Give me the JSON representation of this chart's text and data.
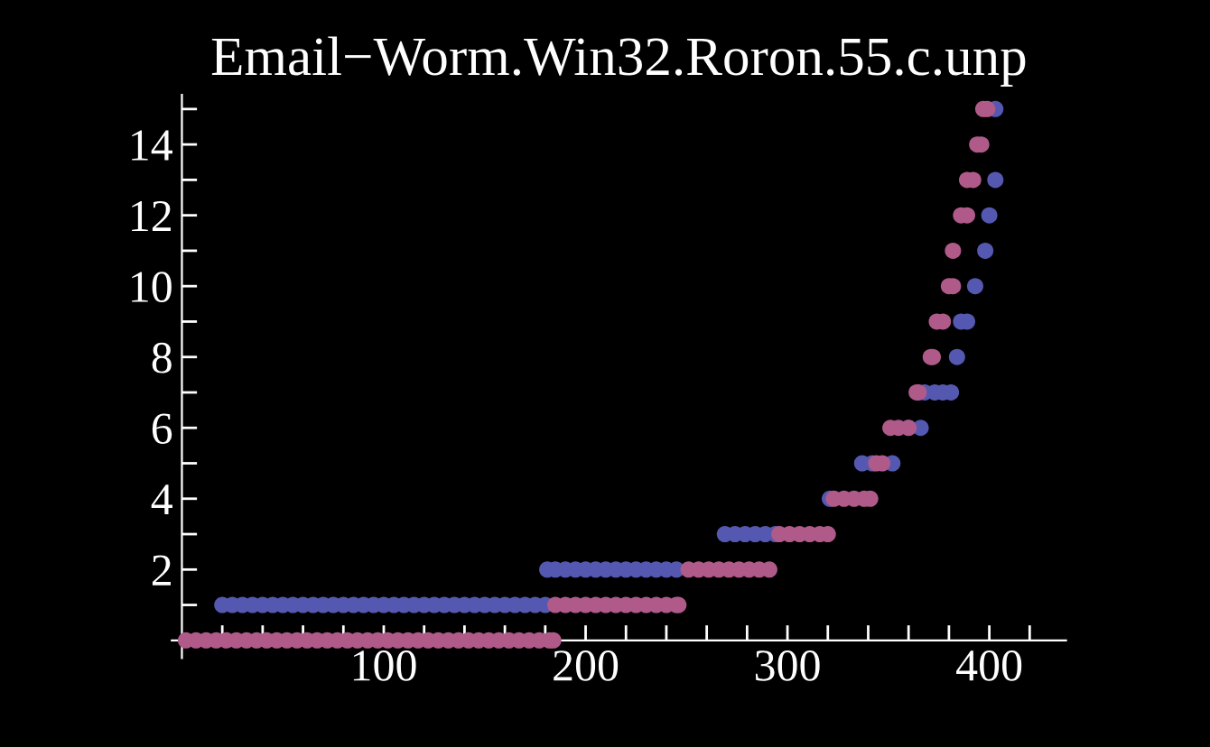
{
  "chart_data": {
    "type": "scatter",
    "title": "Email−Worm.Win32.Roron.55.c.unp",
    "marker": "circle",
    "grid": false,
    "xlim": [
      -5,
      438
    ],
    "ylim": [
      -0.5,
      15.4
    ],
    "xticks": [
      {
        "value": 20,
        "label": null
      },
      {
        "value": 40,
        "label": null
      },
      {
        "value": 60,
        "label": null
      },
      {
        "value": 80,
        "label": null
      },
      100,
      {
        "value": 120,
        "label": null
      },
      {
        "value": 140,
        "label": null
      },
      {
        "value": 160,
        "label": null
      },
      {
        "value": 180,
        "label": null
      },
      200,
      {
        "value": 220,
        "label": null
      },
      {
        "value": 240,
        "label": null
      },
      {
        "value": 260,
        "label": null
      },
      {
        "value": 280,
        "label": null
      },
      300,
      {
        "value": 320,
        "label": null
      },
      {
        "value": 340,
        "label": null
      },
      {
        "value": 360,
        "label": null
      },
      {
        "value": 380,
        "label": null
      },
      400,
      {
        "value": 420,
        "label": null
      }
    ],
    "yticks": [
      {
        "value": 1,
        "label": null
      },
      2,
      {
        "value": 3,
        "label": null
      },
      4,
      {
        "value": 5,
        "label": null
      },
      6,
      {
        "value": 7,
        "label": null
      },
      8,
      {
        "value": 9,
        "label": null
      },
      10,
      {
        "value": 11,
        "label": null
      },
      12,
      {
        "value": 13,
        "label": null
      },
      14,
      {
        "value": 15,
        "label": null
      }
    ],
    "series": [
      {
        "color": "#5558b0",
        "x": [
          20,
          25,
          30,
          35,
          40,
          45,
          50,
          55,
          60,
          65,
          70,
          75,
          80,
          85,
          90,
          95,
          100,
          105,
          110,
          115,
          120,
          125,
          130,
          135,
          140,
          145,
          150,
          155,
          160,
          165,
          170,
          175,
          180,
          181,
          185,
          190,
          195,
          200,
          205,
          210,
          215,
          220,
          225,
          230,
          235,
          240,
          245,
          269,
          274,
          279,
          284,
          289,
          294,
          321,
          337,
          342,
          352,
          360,
          366,
          368,
          373,
          377,
          381,
          384,
          386,
          389,
          393,
          398,
          400,
          403,
          403
        ],
        "values": [
          1,
          1,
          1,
          1,
          1,
          1,
          1,
          1,
          1,
          1,
          1,
          1,
          1,
          1,
          1,
          1,
          1,
          1,
          1,
          1,
          1,
          1,
          1,
          1,
          1,
          1,
          1,
          1,
          1,
          1,
          1,
          1,
          1,
          2,
          2,
          2,
          2,
          2,
          2,
          2,
          2,
          2,
          2,
          2,
          2,
          2,
          2,
          3,
          3,
          3,
          3,
          3,
          3,
          4,
          5,
          5,
          5,
          6,
          6,
          7,
          7,
          7,
          7,
          8,
          9,
          9,
          10,
          11,
          12,
          13,
          15
        ]
      },
      {
        "color": "#b05a8a",
        "x": [
          2,
          7,
          12,
          17,
          22,
          27,
          32,
          37,
          42,
          47,
          52,
          57,
          62,
          67,
          72,
          77,
          82,
          87,
          92,
          97,
          102,
          107,
          112,
          117,
          122,
          127,
          132,
          137,
          142,
          147,
          152,
          157,
          162,
          167,
          172,
          177,
          182,
          184,
          185,
          190,
          195,
          200,
          205,
          210,
          215,
          220,
          225,
          230,
          235,
          240,
          245,
          246,
          251,
          256,
          261,
          266,
          271,
          276,
          281,
          286,
          291,
          296,
          301,
          306,
          311,
          316,
          320,
          323,
          328,
          333,
          338,
          341,
          344,
          347,
          351,
          355,
          360,
          364,
          365,
          371,
          372,
          374,
          377,
          380,
          382,
          382,
          386,
          389,
          389,
          392,
          394,
          396,
          397,
          399
        ],
        "values": [
          0,
          0,
          0,
          0,
          0,
          0,
          0,
          0,
          0,
          0,
          0,
          0,
          0,
          0,
          0,
          0,
          0,
          0,
          0,
          0,
          0,
          0,
          0,
          0,
          0,
          0,
          0,
          0,
          0,
          0,
          0,
          0,
          0,
          0,
          0,
          0,
          0,
          0,
          1,
          1,
          1,
          1,
          1,
          1,
          1,
          1,
          1,
          1,
          1,
          1,
          1,
          1,
          2,
          2,
          2,
          2,
          2,
          2,
          2,
          2,
          2,
          3,
          3,
          3,
          3,
          3,
          3,
          4,
          4,
          4,
          4,
          4,
          5,
          5,
          6,
          6,
          6,
          7,
          7,
          8,
          8,
          9,
          9,
          10,
          10,
          11,
          12,
          12,
          13,
          13,
          14,
          14,
          15,
          15
        ]
      }
    ]
  }
}
